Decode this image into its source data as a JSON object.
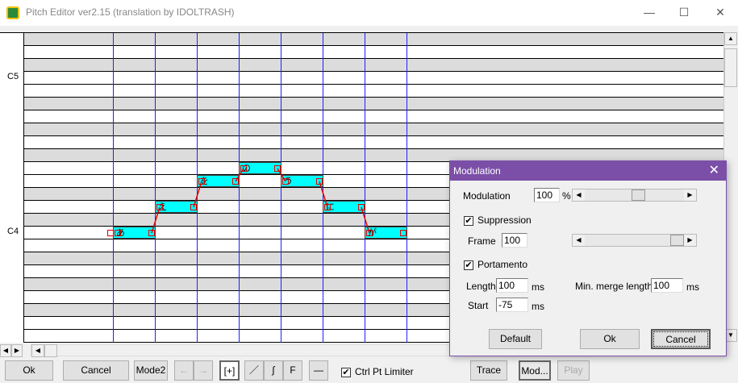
{
  "window": {
    "title": "Pitch Editor ver2.15 (translation by IDOLTRASH)",
    "minimize": "—",
    "maximize": "☐",
    "close": "✕"
  },
  "keyboard": {
    "labels": [
      {
        "pitch": "C5",
        "text": "C5"
      },
      {
        "pitch": "C4",
        "text": "C4"
      }
    ],
    "top_pitch": "D#5",
    "bottom_pitch": "E3"
  },
  "notes": [
    {
      "lyric": "あ",
      "pitch": "C4"
    },
    {
      "lyric": "え",
      "pitch": "D4"
    },
    {
      "lyric": "を",
      "pitch": "E4"
    },
    {
      "lyric": "の",
      "pitch": "F4"
    },
    {
      "lyric": "う",
      "pitch": "E4"
    },
    {
      "lyric": "に",
      "pitch": "D4"
    },
    {
      "lyric": "が",
      "pitch": "C4"
    }
  ],
  "colors": {
    "note": "#00ffff",
    "grid_line": "#2020ff",
    "control_point": "#e00000",
    "dialog_title": "#7b4fa8",
    "black_key_row": "#dcdcdc"
  },
  "toolbar": {
    "ok": "Ok",
    "cancel": "Cancel",
    "mode2": "Mode2",
    "left": "←",
    "right": "→",
    "plus": "[+]",
    "line": "／",
    "curve": "∫",
    "f": "F",
    "minus": "—",
    "ctrl_pt_limiter": "Ctrl Pt Limiter",
    "ctrl_pt_limiter_checked": true,
    "trace": "Trace",
    "mod": "Mod...",
    "play": "Play"
  },
  "dialog": {
    "title": "Modulation",
    "close": "✕",
    "modulation_label": "Modulation",
    "modulation_value": "100",
    "modulation_unit": "%",
    "modulation_slider_percent": 55,
    "suppression_label": "Suppression",
    "suppression_checked": true,
    "frame_label": "Frame",
    "frame_value": "100",
    "frame_slider_percent": 100,
    "portamento_label": "Portamento",
    "portamento_checked": true,
    "length_label": "Length",
    "length_value": "100",
    "length_unit": "ms",
    "min_merge_label": "Min. merge length",
    "min_merge_value": "100",
    "min_merge_unit": "ms",
    "start_label": "Start",
    "start_value": "-75",
    "start_unit": "ms",
    "default": "Default",
    "ok": "Ok",
    "cancel": "Cancel"
  }
}
